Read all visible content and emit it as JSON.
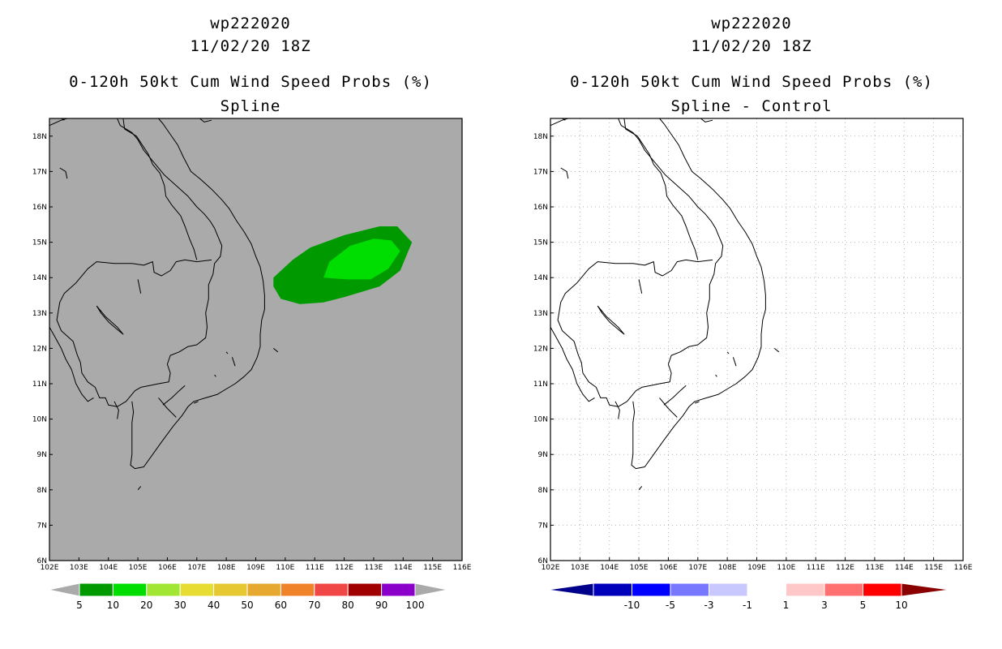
{
  "chart_data": [
    {
      "type": "heatmap",
      "storm_id": "wp222020",
      "datetime": "11/02/20 18Z",
      "title": "0-120h 50kt Cum Wind Speed Probs (%)",
      "subtitle": "Spline",
      "background": "#aaaaaa",
      "grid": false,
      "xlim": [
        102,
        116
      ],
      "ylim": [
        6,
        18.5
      ],
      "x_ticks": [
        "102E",
        "103E",
        "104E",
        "105E",
        "106E",
        "107E",
        "108E",
        "109E",
        "110E",
        "111E",
        "112E",
        "113E",
        "114E",
        "115E",
        "116E"
      ],
      "y_ticks": [
        "6N",
        "7N",
        "8N",
        "9N",
        "10N",
        "11N",
        "12N",
        "13N",
        "14N",
        "15N",
        "16N",
        "17N",
        "18N"
      ],
      "contours": [
        {
          "level": "5-10",
          "color": "#009a00",
          "lonlat": [
            [
              109.6,
              14.0
            ],
            [
              110.25,
              14.5
            ],
            [
              110.85,
              14.85
            ],
            [
              112.0,
              15.2
            ],
            [
              113.2,
              15.45
            ],
            [
              113.8,
              15.45
            ],
            [
              114.3,
              15.0
            ],
            [
              113.9,
              14.2
            ],
            [
              113.2,
              13.75
            ],
            [
              112.0,
              13.45
            ],
            [
              111.3,
              13.3
            ],
            [
              110.5,
              13.25
            ],
            [
              109.85,
              13.4
            ],
            [
              109.6,
              13.75
            ]
          ]
        },
        {
          "level": "10-20",
          "color": "#00dd00",
          "lonlat": [
            [
              111.3,
              14.0
            ],
            [
              111.5,
              14.45
            ],
            [
              112.2,
              14.9
            ],
            [
              113.0,
              15.1
            ],
            [
              113.6,
              15.05
            ],
            [
              113.9,
              14.75
            ],
            [
              113.5,
              14.25
            ],
            [
              112.9,
              13.95
            ],
            [
              112.1,
              13.95
            ]
          ]
        }
      ],
      "colorbar": {
        "labels": [
          "5",
          "10",
          "20",
          "30",
          "40",
          "50",
          "60",
          "70",
          "80",
          "90",
          "100"
        ],
        "colors": [
          "#009a00",
          "#00dd00",
          "#a0e632",
          "#e6dc32",
          "#e6c832",
          "#e6a82e",
          "#f0822a",
          "#f04646",
          "#a00000",
          "#8a00ca"
        ],
        "end_color": "#aaaaaa"
      }
    },
    {
      "type": "heatmap",
      "storm_id": "wp222020",
      "datetime": "11/02/20 18Z",
      "title": "0-120h 50kt Cum Wind Speed Probs (%)",
      "subtitle": "Spline - Control",
      "background": "#ffffff",
      "grid": true,
      "xlim": [
        102,
        116
      ],
      "ylim": [
        6,
        18.5
      ],
      "x_ticks": [
        "102E",
        "103E",
        "104E",
        "105E",
        "106E",
        "107E",
        "108E",
        "109E",
        "110E",
        "111E",
        "112E",
        "113E",
        "114E",
        "115E",
        "116E"
      ],
      "y_ticks": [
        "6N",
        "7N",
        "8N",
        "9N",
        "10N",
        "11N",
        "12N",
        "13N",
        "14N",
        "15N",
        "16N",
        "17N",
        "18N"
      ],
      "contours": [],
      "colorbar": {
        "labels": [
          "-10",
          "-5",
          "-3",
          "-1",
          "1",
          "3",
          "5",
          "10"
        ],
        "colors": [
          "#0000ba",
          "#0000ff",
          "#7878ff",
          "#c8c8ff",
          "#ffffff",
          "#ffc8c8",
          "#ff7070",
          "#ff0000"
        ],
        "left_end": "#00008a",
        "right_end": "#8a0000"
      }
    }
  ],
  "coastline": [
    [
      [
        102.0,
        18.3
      ],
      [
        102.4,
        18.45
      ],
      [
        102.6,
        18.5
      ]
    ],
    [
      [
        104.3,
        18.5
      ],
      [
        104.4,
        18.3
      ],
      [
        104.8,
        18.1
      ],
      [
        105.0,
        17.9
      ],
      [
        105.2,
        17.6
      ],
      [
        105.6,
        17.2
      ],
      [
        105.9,
        16.9
      ],
      [
        106.3,
        16.6
      ],
      [
        106.7,
        16.3
      ],
      [
        107.0,
        16.0
      ],
      [
        107.25,
        15.8
      ],
      [
        107.45,
        15.6
      ],
      [
        107.6,
        15.4
      ],
      [
        107.7,
        15.2
      ],
      [
        107.85,
        14.9
      ],
      [
        107.8,
        14.6
      ],
      [
        107.6,
        14.4
      ],
      [
        107.55,
        14.1
      ],
      [
        107.4,
        13.8
      ],
      [
        107.4,
        13.4
      ],
      [
        107.3,
        13.0
      ],
      [
        107.35,
        12.6
      ],
      [
        107.3,
        12.3
      ],
      [
        107.0,
        12.1
      ],
      [
        106.7,
        12.05
      ],
      [
        106.4,
        11.9
      ],
      [
        106.1,
        11.8
      ],
      [
        106.0,
        11.55
      ],
      [
        106.1,
        11.3
      ],
      [
        106.05,
        11.05
      ],
      [
        105.7,
        11.0
      ],
      [
        105.4,
        10.95
      ],
      [
        105.1,
        10.9
      ],
      [
        104.9,
        10.8
      ],
      [
        104.6,
        10.5
      ],
      [
        104.3,
        10.35
      ],
      [
        104.0,
        10.4
      ],
      [
        103.9,
        10.6
      ],
      [
        103.7,
        10.6
      ],
      [
        103.55,
        10.9
      ],
      [
        103.3,
        11.05
      ],
      [
        103.1,
        11.3
      ],
      [
        103.05,
        11.6
      ],
      [
        102.95,
        11.8
      ],
      [
        102.8,
        12.2
      ],
      [
        102.4,
        12.5
      ],
      [
        102.25,
        12.8
      ],
      [
        102.35,
        13.3
      ],
      [
        102.5,
        13.55
      ],
      [
        102.9,
        13.85
      ],
      [
        103.3,
        14.25
      ],
      [
        103.6,
        14.45
      ],
      [
        104.2,
        14.4
      ],
      [
        104.8,
        14.4
      ],
      [
        105.2,
        14.35
      ],
      [
        105.5,
        14.45
      ],
      [
        105.55,
        14.15
      ],
      [
        105.8,
        14.05
      ],
      [
        106.1,
        14.2
      ],
      [
        106.3,
        14.45
      ],
      [
        106.6,
        14.5
      ],
      [
        107.0,
        14.45
      ],
      [
        107.5,
        14.5
      ]
    ],
    [
      [
        102.0,
        12.6
      ],
      [
        102.2,
        12.3
      ],
      [
        102.4,
        12.0
      ],
      [
        102.55,
        11.7
      ],
      [
        102.75,
        11.4
      ],
      [
        102.9,
        11.0
      ],
      [
        103.1,
        10.7
      ],
      [
        103.3,
        10.5
      ],
      [
        103.5,
        10.6
      ]
    ],
    [
      [
        104.8,
        10.5
      ],
      [
        104.85,
        10.2
      ],
      [
        104.8,
        9.9
      ],
      [
        104.8,
        9.5
      ],
      [
        104.8,
        9.0
      ],
      [
        104.75,
        8.7
      ],
      [
        104.9,
        8.6
      ],
      [
        105.2,
        8.65
      ],
      [
        105.5,
        9.0
      ],
      [
        105.8,
        9.35
      ],
      [
        106.2,
        9.8
      ],
      [
        106.5,
        10.1
      ],
      [
        106.7,
        10.35
      ],
      [
        106.9,
        10.5
      ],
      [
        107.3,
        10.6
      ],
      [
        107.7,
        10.7
      ],
      [
        108.0,
        10.85
      ],
      [
        108.3,
        11.0
      ],
      [
        108.6,
        11.2
      ],
      [
        108.85,
        11.4
      ],
      [
        109.05,
        11.75
      ],
      [
        109.15,
        12.05
      ],
      [
        109.15,
        12.4
      ],
      [
        109.2,
        12.8
      ],
      [
        109.3,
        13.1
      ],
      [
        109.3,
        13.5
      ],
      [
        109.25,
        13.9
      ],
      [
        109.15,
        14.3
      ],
      [
        109.0,
        14.6
      ],
      [
        108.85,
        14.95
      ],
      [
        108.6,
        15.3
      ],
      [
        108.35,
        15.6
      ],
      [
        108.1,
        15.95
      ],
      [
        107.85,
        16.2
      ],
      [
        107.5,
        16.5
      ],
      [
        107.1,
        16.8
      ],
      [
        106.8,
        17.0
      ],
      [
        106.55,
        17.4
      ],
      [
        106.35,
        17.75
      ],
      [
        106.1,
        18.05
      ],
      [
        105.85,
        18.35
      ],
      [
        105.7,
        18.5
      ]
    ],
    [
      [
        104.5,
        18.5
      ],
      [
        104.55,
        18.2
      ],
      [
        104.95,
        18.0
      ],
      [
        105.15,
        17.75
      ],
      [
        105.35,
        17.5
      ],
      [
        105.5,
        17.2
      ],
      [
        105.75,
        16.95
      ],
      [
        105.9,
        16.6
      ],
      [
        105.95,
        16.3
      ],
      [
        106.15,
        16.05
      ],
      [
        106.45,
        15.75
      ],
      [
        106.6,
        15.45
      ],
      [
        106.75,
        15.1
      ],
      [
        106.9,
        14.8
      ],
      [
        107.0,
        14.5
      ]
    ],
    [
      [
        107.1,
        18.5
      ],
      [
        107.25,
        18.4
      ],
      [
        107.5,
        18.45
      ]
    ],
    [
      [
        103.6,
        13.2
      ],
      [
        103.9,
        12.9
      ],
      [
        104.3,
        12.6
      ],
      [
        104.5,
        12.4
      ],
      [
        104.35,
        12.5
      ],
      [
        104.0,
        12.75
      ],
      [
        103.75,
        13.0
      ],
      [
        103.6,
        13.2
      ]
    ],
    [
      [
        104.2,
        10.5
      ],
      [
        104.35,
        10.25
      ],
      [
        104.3,
        10.0
      ]
    ],
    [
      [
        105.0,
        8.0
      ],
      [
        105.1,
        8.1
      ]
    ],
    [
      [
        102.4,
        18.5
      ],
      [
        102.5,
        18.45
      ]
    ],
    [
      [
        102.35,
        17.1
      ],
      [
        102.55,
        17.0
      ],
      [
        102.6,
        16.8
      ]
    ],
    [
      [
        105.0,
        13.95
      ],
      [
        105.1,
        13.55
      ]
    ],
    [
      [
        105.7,
        10.6
      ],
      [
        106.0,
        10.3
      ],
      [
        106.3,
        10.05
      ]
    ],
    [
      [
        105.85,
        10.4
      ],
      [
        106.15,
        10.6
      ],
      [
        106.4,
        10.8
      ],
      [
        106.6,
        10.95
      ]
    ],
    [
      [
        108.2,
        11.75
      ],
      [
        108.3,
        11.5
      ]
    ],
    [
      [
        109.6,
        12.0
      ],
      [
        109.75,
        11.9
      ]
    ],
    [
      [
        106.9,
        10.45
      ],
      [
        107.05,
        10.5
      ]
    ],
    [
      [
        107.6,
        11.25
      ],
      [
        107.65,
        11.2
      ]
    ],
    [
      [
        108.0,
        11.9
      ],
      [
        108.05,
        11.85
      ]
    ]
  ]
}
